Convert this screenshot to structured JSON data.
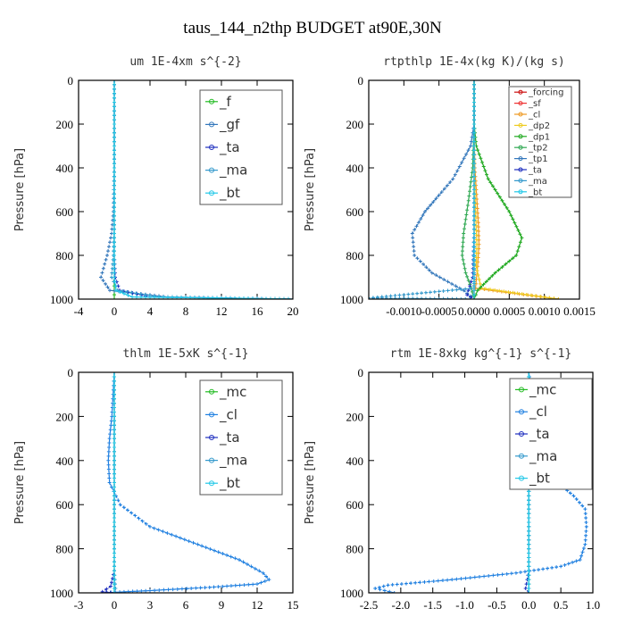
{
  "figure_title": "taus_144_n2thp  BUDGET at90E,30N",
  "colors": {
    "f": "#22bb22",
    "gf": "#3377bb",
    "ta": "#1f2fbf",
    "ma": "#3399cc",
    "bt": "#22c8e8",
    "mc": "#22bb22",
    "cl": "#1e7fe0",
    "forcing": "#cc1111",
    "sf": "#ee3333",
    "cl_orange": "#ee9922",
    "dp2": "#eecc22",
    "dp1": "#22aa22",
    "tp2": "#33aa55",
    "tp1": "#3377bb"
  },
  "chart_data": [
    {
      "type": "line",
      "title": "um  1E-4xm s^{-2}",
      "ylabel": "Pressure [hPa]",
      "xlim": [
        -4,
        20
      ],
      "ylim": [
        1000,
        0
      ],
      "xticks": [
        "-4",
        "0",
        "4",
        "8",
        "12",
        "16",
        "20"
      ],
      "yticks": [
        "0",
        "200",
        "400",
        "600",
        "800",
        "1000"
      ],
      "legend": [
        "_f",
        "_gf",
        "_ta",
        "_ma",
        "_bt"
      ],
      "series": [
        {
          "name": "_f",
          "color_key": "f",
          "x": [
            0,
            0,
            0,
            0,
            0,
            0,
            0,
            0
          ],
          "y": [
            0,
            200,
            400,
            600,
            800,
            900,
            960,
            1000
          ]
        },
        {
          "name": "_gf",
          "color_key": "gf",
          "x": [
            0,
            0,
            0,
            -0.1,
            -0.3,
            -0.8,
            -1.5,
            -0.5,
            6,
            20
          ],
          "y": [
            0,
            200,
            400,
            600,
            700,
            800,
            900,
            960,
            990,
            1000
          ]
        },
        {
          "name": "_ta",
          "color_key": "ta",
          "x": [
            0,
            0,
            0,
            0,
            0,
            0.1,
            0.6,
            4,
            20
          ],
          "y": [
            0,
            200,
            400,
            600,
            800,
            900,
            960,
            990,
            1000
          ]
        },
        {
          "name": "_ma",
          "color_key": "ma",
          "x": [
            0,
            0,
            0,
            0,
            -0.1,
            -0.3,
            0.4,
            5,
            20
          ],
          "y": [
            0,
            200,
            400,
            600,
            800,
            900,
            960,
            990,
            1000
          ]
        },
        {
          "name": "_bt",
          "color_key": "bt",
          "x": [
            0,
            0,
            0,
            0,
            0,
            0,
            0.2,
            2,
            20
          ],
          "y": [
            0,
            200,
            400,
            600,
            800,
            900,
            960,
            990,
            1000
          ]
        }
      ]
    },
    {
      "type": "line",
      "title": "rtpthlp  1E-4x(kg K)/(kg s)",
      "ylabel": "Pressure [hPa]",
      "xlim": [
        -0.0015,
        0.0015
      ],
      "ylim": [
        1000,
        0
      ],
      "xticks": [
        "-0.0010",
        "-0.0005",
        "0.0000",
        "0.0005",
        "0.0010",
        "0.0015"
      ],
      "yticks": [
        "0",
        "200",
        "400",
        "600",
        "800",
        "1000"
      ],
      "legend": [
        "_forcing",
        "_sf",
        "_cl",
        "_dp2",
        "_dp1",
        "_tp2",
        "_tp1",
        "_ta",
        "_ma",
        "_bt"
      ],
      "series": [
        {
          "name": "_forcing",
          "color_key": "forcing",
          "x": [
            0,
            0,
            0,
            0,
            0,
            0,
            0,
            0,
            0,
            0
          ],
          "y": [
            0,
            100,
            200,
            300,
            400,
            500,
            600,
            700,
            800,
            1000
          ]
        },
        {
          "name": "_sf",
          "color_key": "sf",
          "x": [
            0,
            0,
            0,
            0,
            0,
            0,
            0,
            0,
            0
          ],
          "y": [
            0,
            200,
            400,
            500,
            600,
            700,
            800,
            900,
            1000
          ]
        },
        {
          "name": "_cl",
          "color_key": "cl_orange",
          "x": [
            0,
            0,
            1e-05,
            3e-05,
            6e-05,
            7e-05,
            5e-05,
            2e-05,
            0.0012
          ],
          "y": [
            0,
            200,
            400,
            500,
            650,
            750,
            850,
            950,
            1000
          ]
        },
        {
          "name": "_dp2",
          "color_key": "dp2",
          "x": [
            0,
            0,
            0,
            2e-05,
            4e-05,
            3e-05,
            0.0001,
            0.0012
          ],
          "y": [
            0,
            200,
            400,
            600,
            750,
            850,
            950,
            1000
          ]
        },
        {
          "name": "_dp1",
          "color_key": "dp1",
          "x": [
            0,
            0,
            3e-05,
            0.0002,
            0.0005,
            0.00068,
            0.0006,
            0.0003,
            5e-05,
            0
          ],
          "y": [
            0,
            200,
            300,
            450,
            600,
            720,
            800,
            880,
            960,
            1000
          ]
        },
        {
          "name": "_tp2",
          "color_key": "tp2",
          "x": [
            0,
            0,
            -2e-05,
            -8e-05,
            -0.00015,
            -0.00017,
            -0.00012,
            -4e-05,
            0
          ],
          "y": [
            0,
            200,
            400,
            550,
            700,
            800,
            880,
            950,
            1000
          ]
        },
        {
          "name": "_tp1",
          "color_key": "tp1",
          "x": [
            0,
            0,
            -5e-05,
            -0.0003,
            -0.0007,
            -0.00088,
            -0.00085,
            -0.0006,
            -0.00015,
            0
          ],
          "y": [
            0,
            200,
            300,
            450,
            600,
            700,
            800,
            880,
            960,
            1000
          ]
        },
        {
          "name": "_ta",
          "color_key": "ta",
          "x": [
            0,
            0,
            0,
            0,
            -2e-05,
            -0.0001,
            0
          ],
          "y": [
            0,
            200,
            400,
            700,
            900,
            980,
            1000
          ]
        },
        {
          "name": "_ma",
          "color_key": "ma",
          "x": [
            0,
            0,
            0,
            0,
            0,
            -0.0015,
            0
          ],
          "y": [
            0,
            200,
            400,
            700,
            950,
            995,
            1000
          ]
        },
        {
          "name": "_bt",
          "color_key": "bt",
          "x": [
            0,
            0,
            0,
            0,
            0,
            0
          ],
          "y": [
            0,
            200,
            400,
            700,
            900,
            1000
          ]
        }
      ]
    },
    {
      "type": "line",
      "title": "thlm  1E-5xK s^{-1}",
      "ylabel": "Pressure [hPa]",
      "xlim": [
        -3,
        15
      ],
      "ylim": [
        1000,
        0
      ],
      "xticks": [
        "-3",
        "0",
        "3",
        "6",
        "9",
        "12",
        "15"
      ],
      "yticks": [
        "0",
        "200",
        "400",
        "600",
        "800",
        "1000"
      ],
      "legend": [
        "_mc",
        "_cl",
        "_ta",
        "_ma",
        "_bt"
      ],
      "series": [
        {
          "name": "_mc",
          "color_key": "mc",
          "x": [
            0,
            0,
            0,
            0,
            0,
            0,
            0,
            0
          ],
          "y": [
            0,
            200,
            400,
            600,
            800,
            900,
            960,
            1000
          ]
        },
        {
          "name": "_cl",
          "color_key": "cl",
          "x": [
            0,
            -0.1,
            -0.2,
            -0.4,
            -0.5,
            -0.4,
            0.5,
            3,
            7,
            10.5,
            12.5,
            13,
            12,
            8,
            3,
            -1
          ],
          "y": [
            0,
            100,
            200,
            300,
            400,
            500,
            600,
            700,
            780,
            850,
            910,
            940,
            960,
            975,
            990,
            1000
          ]
        },
        {
          "name": "_ta",
          "color_key": "ta",
          "x": [
            0,
            0,
            0,
            0,
            0,
            0,
            -0.3,
            -1,
            0
          ],
          "y": [
            0,
            200,
            400,
            600,
            800,
            900,
            970,
            995,
            1000
          ]
        },
        {
          "name": "_ma",
          "color_key": "ma",
          "x": [
            0,
            0,
            0,
            0,
            0,
            0,
            0.1,
            0
          ],
          "y": [
            0,
            200,
            400,
            600,
            800,
            900,
            980,
            1000
          ]
        },
        {
          "name": "_bt",
          "color_key": "bt",
          "x": [
            0,
            0,
            0,
            0,
            0,
            0,
            0
          ],
          "y": [
            0,
            200,
            400,
            600,
            800,
            900,
            1000
          ]
        }
      ]
    },
    {
      "type": "line",
      "title": "rtm  1E-8xkg kg^{-1} s^{-1}",
      "ylabel": "Pressure [hPa]",
      "xlim": [
        -2.5,
        1.0
      ],
      "ylim": [
        1000,
        0
      ],
      "xticks": [
        "-2.5",
        "-2.0",
        "-1.5",
        "-1.0",
        "-0.5",
        "0.0",
        "0.5",
        "1.0"
      ],
      "yticks": [
        "0",
        "200",
        "400",
        "600",
        "800",
        "1000"
      ],
      "legend": [
        "_mc",
        "_cl",
        "_ta",
        "_ma",
        "_bt"
      ],
      "series": [
        {
          "name": "_mc",
          "color_key": "mc",
          "x": [
            0,
            0,
            0,
            0,
            0,
            0,
            0,
            0
          ],
          "y": [
            0,
            200,
            400,
            600,
            800,
            900,
            960,
            1000
          ]
        },
        {
          "name": "_cl",
          "color_key": "cl",
          "x": [
            0,
            0.05,
            0.12,
            0.2,
            0.3,
            0.45,
            0.7,
            0.88,
            0.9,
            0.88,
            0.8,
            0.5,
            -0.2,
            -1.2,
            -2.2,
            -2.4,
            -2.1
          ],
          "y": [
            0,
            100,
            200,
            300,
            400,
            500,
            560,
            620,
            700,
            780,
            850,
            880,
            910,
            940,
            965,
            980,
            1000
          ]
        },
        {
          "name": "_ta",
          "color_key": "ta",
          "x": [
            0,
            0,
            0,
            0,
            0,
            0,
            -0.05,
            0
          ],
          "y": [
            0,
            200,
            400,
            600,
            800,
            900,
            980,
            1000
          ]
        },
        {
          "name": "_ma",
          "color_key": "ma",
          "x": [
            0,
            0,
            0,
            0,
            0,
            0,
            0
          ],
          "y": [
            0,
            200,
            400,
            600,
            800,
            900,
            1000
          ]
        },
        {
          "name": "_bt",
          "color_key": "bt",
          "x": [
            0,
            0,
            0,
            0,
            0,
            0,
            0
          ],
          "y": [
            0,
            200,
            400,
            600,
            800,
            900,
            1000
          ]
        }
      ]
    }
  ]
}
